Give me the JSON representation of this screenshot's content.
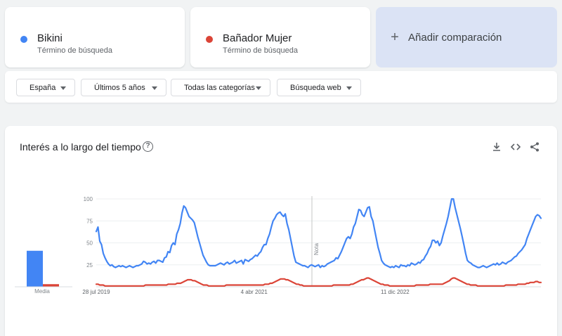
{
  "terms": [
    {
      "name": "Bikini",
      "sub": "Término de búsqueda",
      "color": "#4285f4"
    },
    {
      "name": "Bañador Mujer",
      "sub": "Término de búsqueda",
      "color": "#db4437"
    }
  ],
  "add_comparison": {
    "plus": "+",
    "label": "Añadir comparación"
  },
  "filters": [
    {
      "label": "España"
    },
    {
      "label": "Últimos 5 años"
    },
    {
      "label": "Todas las categorías"
    },
    {
      "label": "Búsqueda web"
    }
  ],
  "panel": {
    "title": "Interés a lo largo del tiempo",
    "help": "?"
  },
  "average": {
    "label": "Media",
    "values": [
      41,
      3
    ]
  },
  "chart_data": {
    "type": "line",
    "ylim": [
      0,
      100
    ],
    "y_ticks": [
      "25",
      "50",
      "75",
      "100"
    ],
    "x_tick_labels": [
      "28 jul 2019",
      "4 abr 2021",
      "11 dic 2022"
    ],
    "annotation": "Nota",
    "grid": true,
    "series": [
      {
        "name": "Bikini",
        "color": "#4285f4",
        "values": [
          63,
          68,
          52,
          48,
          38,
          33,
          29,
          26,
          24,
          25,
          23,
          22,
          23,
          24,
          23,
          24,
          23,
          22,
          23,
          24,
          23,
          22,
          23,
          24,
          24,
          25,
          26,
          29,
          28,
          26,
          27,
          26,
          28,
          29,
          27,
          30,
          30,
          29,
          28,
          33,
          34,
          40,
          39,
          47,
          50,
          48,
          60,
          65,
          72,
          84,
          92,
          90,
          85,
          80,
          78,
          76,
          73,
          65,
          57,
          50,
          43,
          36,
          32,
          28,
          25,
          24,
          24,
          24,
          24,
          25,
          26,
          27,
          26,
          25,
          27,
          28,
          26,
          27,
          28,
          30,
          27,
          28,
          29,
          30,
          26,
          31,
          30,
          29,
          31,
          32,
          34,
          36,
          35,
          38,
          40,
          45,
          48,
          48,
          55,
          60,
          68,
          75,
          78,
          82,
          84,
          85,
          82,
          80,
          83,
          72,
          65,
          55,
          45,
          35,
          28,
          27,
          26,
          25,
          24,
          24,
          23,
          22,
          24,
          25,
          24,
          23,
          24,
          25,
          22,
          24,
          23,
          24,
          26,
          27,
          28,
          29,
          30,
          33,
          32,
          36,
          40,
          45,
          50,
          55,
          57,
          55,
          60,
          68,
          72,
          80,
          88,
          87,
          82,
          80,
          85,
          90,
          91,
          80,
          75,
          65,
          55,
          45,
          38,
          30,
          27,
          25,
          24,
          23,
          22,
          23,
          22,
          24,
          23,
          22,
          25,
          24,
          24,
          23,
          25,
          24,
          27,
          26,
          25,
          26,
          28,
          27,
          30,
          31,
          35,
          38,
          43,
          46,
          53,
          53,
          50,
          52,
          47,
          50,
          58,
          65,
          72,
          80,
          90,
          100,
          100,
          90,
          82,
          74,
          66,
          57,
          48,
          38,
          30,
          28,
          27,
          25,
          24,
          23,
          22,
          22,
          23,
          24,
          23,
          22,
          23,
          24,
          25,
          26,
          25,
          27,
          25,
          26,
          28,
          27,
          26,
          28,
          29,
          30,
          32,
          34,
          35,
          38,
          40,
          42,
          45,
          48,
          55,
          60,
          65,
          70,
          75,
          80,
          82,
          81,
          78
        ]
      },
      {
        "name": "Bañador Mujer",
        "color": "#db4437",
        "values": [
          3,
          3,
          2,
          2,
          2,
          1,
          1,
          1,
          1,
          1,
          1,
          1,
          1,
          1,
          1,
          1,
          1,
          1,
          1,
          1,
          1,
          1,
          1,
          1,
          1,
          1,
          1,
          1,
          2,
          2,
          2,
          2,
          2,
          2,
          2,
          2,
          2,
          2,
          2,
          2,
          2,
          3,
          3,
          3,
          3,
          3,
          4,
          4,
          4,
          5,
          6,
          7,
          8,
          8,
          8,
          7,
          7,
          6,
          5,
          4,
          3,
          2,
          2,
          2,
          1,
          1,
          1,
          1,
          1,
          1,
          1,
          1,
          1,
          1,
          2,
          2,
          2,
          2,
          2,
          2,
          2,
          2,
          2,
          2,
          2,
          2,
          2,
          2,
          2,
          2,
          2,
          2,
          2,
          2,
          2,
          2,
          3,
          3,
          3,
          4,
          4,
          5,
          6,
          7,
          8,
          9,
          9,
          9,
          8,
          8,
          7,
          6,
          5,
          4,
          3,
          3,
          2,
          2,
          1,
          1,
          1,
          1,
          1,
          1,
          1,
          1,
          1,
          1,
          1,
          1,
          1,
          1,
          1,
          1,
          1,
          2,
          2,
          2,
          2,
          2,
          2,
          2,
          2,
          2,
          2,
          3,
          3,
          4,
          5,
          6,
          7,
          8,
          8,
          9,
          10,
          10,
          9,
          8,
          7,
          6,
          5,
          4,
          3,
          3,
          2,
          2,
          2,
          1,
          1,
          1,
          1,
          1,
          1,
          1,
          1,
          1,
          1,
          1,
          1,
          1,
          1,
          1,
          2,
          2,
          2,
          2,
          2,
          2,
          2,
          2,
          3,
          3,
          3,
          3,
          3,
          3,
          3,
          3,
          4,
          5,
          6,
          7,
          9,
          10,
          10,
          9,
          8,
          7,
          6,
          5,
          4,
          3,
          3,
          2,
          2,
          2,
          2,
          1,
          1,
          1,
          1,
          1,
          1,
          1,
          1,
          1,
          1,
          1,
          1,
          1,
          1,
          1,
          1,
          2,
          2,
          2,
          2,
          2,
          2,
          2,
          3,
          3,
          3,
          3,
          3,
          4,
          4,
          5,
          5,
          5,
          6,
          6,
          5,
          5
        ]
      }
    ]
  }
}
